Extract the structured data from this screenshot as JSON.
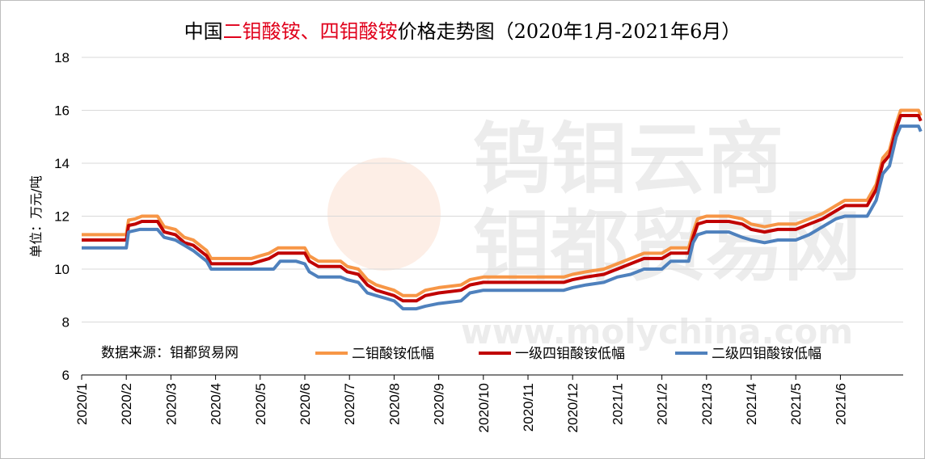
{
  "chart_data": {
    "type": "line",
    "title": {
      "prefix": "中国",
      "red1": "二钼酸铵",
      "sep": "、",
      "red2": "四钼酸铵",
      "suffix": "价格走势图（2020年1月-2021年6月）"
    },
    "ylabel": "单位：万元/吨",
    "source": "数据来源：钼都贸易网",
    "watermark": {
      "line1": "钨钼云商",
      "line2": "钼都贸易网",
      "url": "www.molychina.com"
    },
    "ylim": [
      6,
      18
    ],
    "yticks": [
      6,
      8,
      10,
      12,
      14,
      16,
      18
    ],
    "xlim": [
      0,
      18
    ],
    "xticks": [
      "2020/1",
      "2020/2",
      "2020/3",
      "2020/4",
      "2020/5",
      "2020/6",
      "2020/7",
      "2020/8",
      "2020/9",
      "2020/10",
      "2020/11",
      "2020/12",
      "2021/1",
      "2021/2",
      "2021/3",
      "2021/4",
      "2021/5",
      "2021/6"
    ],
    "grid": "horizontal",
    "legend_position": "bottom",
    "series": [
      {
        "name": "二钼酸铵低幅",
        "color": "#f79646",
        "points": [
          [
            0,
            11.3
          ],
          [
            0.5,
            11.3
          ],
          [
            1.0,
            11.3
          ],
          [
            1.05,
            11.85
          ],
          [
            1.2,
            11.9
          ],
          [
            1.35,
            12.0
          ],
          [
            1.7,
            12.0
          ],
          [
            1.85,
            11.6
          ],
          [
            2.1,
            11.5
          ],
          [
            2.3,
            11.2
          ],
          [
            2.5,
            11.1
          ],
          [
            2.8,
            10.7
          ],
          [
            2.9,
            10.4
          ],
          [
            3.2,
            10.4
          ],
          [
            3.8,
            10.4
          ],
          [
            4.0,
            10.5
          ],
          [
            4.2,
            10.6
          ],
          [
            4.4,
            10.8
          ],
          [
            5.0,
            10.8
          ],
          [
            5.1,
            10.5
          ],
          [
            5.3,
            10.3
          ],
          [
            5.8,
            10.3
          ],
          [
            5.95,
            10.1
          ],
          [
            6.2,
            10.0
          ],
          [
            6.4,
            9.6
          ],
          [
            6.6,
            9.4
          ],
          [
            6.8,
            9.3
          ],
          [
            7.0,
            9.2
          ],
          [
            7.2,
            9.0
          ],
          [
            7.5,
            9.0
          ],
          [
            7.7,
            9.2
          ],
          [
            8.0,
            9.3
          ],
          [
            8.5,
            9.4
          ],
          [
            8.7,
            9.6
          ],
          [
            9.0,
            9.7
          ],
          [
            10.0,
            9.7
          ],
          [
            10.8,
            9.7
          ],
          [
            11.0,
            9.8
          ],
          [
            11.3,
            9.9
          ],
          [
            11.7,
            10.0
          ],
          [
            12.0,
            10.2
          ],
          [
            12.3,
            10.4
          ],
          [
            12.6,
            10.6
          ],
          [
            13.0,
            10.6
          ],
          [
            13.2,
            10.8
          ],
          [
            13.6,
            10.8
          ],
          [
            13.7,
            11.4
          ],
          [
            13.8,
            11.9
          ],
          [
            14.0,
            12.0
          ],
          [
            14.5,
            12.0
          ],
          [
            14.8,
            11.9
          ],
          [
            15.0,
            11.7
          ],
          [
            15.3,
            11.6
          ],
          [
            15.6,
            11.7
          ],
          [
            16.0,
            11.7
          ],
          [
            16.3,
            11.9
          ],
          [
            16.6,
            12.1
          ],
          [
            16.9,
            12.4
          ],
          [
            17.1,
            12.6
          ],
          [
            17.6,
            12.6
          ],
          [
            17.8,
            13.2
          ],
          [
            17.95,
            14.2
          ],
          [
            18.1,
            14.5
          ],
          [
            18.25,
            15.5
          ],
          [
            18.35,
            16.0
          ],
          [
            18.75,
            16.0
          ],
          [
            18.8,
            15.8
          ]
        ],
        "offset": 0.0
      },
      {
        "name": "一级四钼酸铵低幅",
        "color": "#c00000",
        "points": [
          [
            0,
            11.3
          ],
          [
            0.5,
            11.3
          ],
          [
            1.0,
            11.3
          ],
          [
            1.05,
            11.85
          ],
          [
            1.2,
            11.9
          ],
          [
            1.35,
            12.0
          ],
          [
            1.7,
            12.0
          ],
          [
            1.85,
            11.6
          ],
          [
            2.1,
            11.5
          ],
          [
            2.3,
            11.2
          ],
          [
            2.5,
            11.1
          ],
          [
            2.8,
            10.7
          ],
          [
            2.9,
            10.4
          ],
          [
            3.2,
            10.4
          ],
          [
            3.8,
            10.4
          ],
          [
            4.0,
            10.5
          ],
          [
            4.2,
            10.6
          ],
          [
            4.4,
            10.8
          ],
          [
            5.0,
            10.8
          ],
          [
            5.1,
            10.5
          ],
          [
            5.3,
            10.3
          ],
          [
            5.8,
            10.3
          ],
          [
            5.95,
            10.1
          ],
          [
            6.2,
            10.0
          ],
          [
            6.4,
            9.6
          ],
          [
            6.6,
            9.4
          ],
          [
            6.8,
            9.3
          ],
          [
            7.0,
            9.2
          ],
          [
            7.2,
            9.0
          ],
          [
            7.5,
            9.0
          ],
          [
            7.7,
            9.2
          ],
          [
            8.0,
            9.3
          ],
          [
            8.5,
            9.4
          ],
          [
            8.7,
            9.6
          ],
          [
            9.0,
            9.7
          ],
          [
            10.0,
            9.7
          ],
          [
            10.8,
            9.7
          ],
          [
            11.0,
            9.8
          ],
          [
            11.3,
            9.9
          ],
          [
            11.7,
            10.0
          ],
          [
            12.0,
            10.2
          ],
          [
            12.3,
            10.4
          ],
          [
            12.6,
            10.6
          ],
          [
            13.0,
            10.6
          ],
          [
            13.2,
            10.8
          ],
          [
            13.6,
            10.8
          ],
          [
            13.7,
            11.4
          ],
          [
            13.8,
            11.9
          ],
          [
            14.0,
            12.0
          ],
          [
            14.5,
            12.0
          ],
          [
            14.8,
            11.9
          ],
          [
            15.0,
            11.7
          ],
          [
            15.3,
            11.6
          ],
          [
            15.6,
            11.7
          ],
          [
            16.0,
            11.7
          ],
          [
            16.3,
            11.9
          ],
          [
            16.6,
            12.1
          ],
          [
            16.9,
            12.4
          ],
          [
            17.1,
            12.6
          ],
          [
            17.6,
            12.6
          ],
          [
            17.8,
            13.2
          ],
          [
            17.95,
            14.2
          ],
          [
            18.1,
            14.5
          ],
          [
            18.25,
            15.5
          ],
          [
            18.35,
            16.0
          ],
          [
            18.75,
            16.0
          ],
          [
            18.8,
            15.8
          ]
        ],
        "offset": -0.2
      },
      {
        "name": "二级四钼酸铵低幅",
        "color": "#4f81bd",
        "points": [
          [
            0,
            10.8
          ],
          [
            1.0,
            10.8
          ],
          [
            1.05,
            11.4
          ],
          [
            1.3,
            11.5
          ],
          [
            1.7,
            11.5
          ],
          [
            1.85,
            11.2
          ],
          [
            2.1,
            11.1
          ],
          [
            2.3,
            10.9
          ],
          [
            2.5,
            10.7
          ],
          [
            2.8,
            10.3
          ],
          [
            2.9,
            10.0
          ],
          [
            3.8,
            10.0
          ],
          [
            4.3,
            10.0
          ],
          [
            4.45,
            10.3
          ],
          [
            4.8,
            10.3
          ],
          [
            5.0,
            10.2
          ],
          [
            5.1,
            9.9
          ],
          [
            5.3,
            9.7
          ],
          [
            5.8,
            9.7
          ],
          [
            5.95,
            9.6
          ],
          [
            6.2,
            9.5
          ],
          [
            6.4,
            9.1
          ],
          [
            6.6,
            9.0
          ],
          [
            6.8,
            8.9
          ],
          [
            7.0,
            8.8
          ],
          [
            7.2,
            8.5
          ],
          [
            7.5,
            8.5
          ],
          [
            7.7,
            8.6
          ],
          [
            8.0,
            8.7
          ],
          [
            8.5,
            8.8
          ],
          [
            8.7,
            9.1
          ],
          [
            9.0,
            9.2
          ],
          [
            10.0,
            9.2
          ],
          [
            10.8,
            9.2
          ],
          [
            11.0,
            9.3
          ],
          [
            11.3,
            9.4
          ],
          [
            11.7,
            9.5
          ],
          [
            12.0,
            9.7
          ],
          [
            12.3,
            9.8
          ],
          [
            12.6,
            10.0
          ],
          [
            13.0,
            10.0
          ],
          [
            13.2,
            10.3
          ],
          [
            13.6,
            10.3
          ],
          [
            13.7,
            11.0
          ],
          [
            13.8,
            11.3
          ],
          [
            14.0,
            11.4
          ],
          [
            14.5,
            11.4
          ],
          [
            14.8,
            11.2
          ],
          [
            15.0,
            11.1
          ],
          [
            15.3,
            11.0
          ],
          [
            15.6,
            11.1
          ],
          [
            16.0,
            11.1
          ],
          [
            16.3,
            11.3
          ],
          [
            16.6,
            11.6
          ],
          [
            16.9,
            11.9
          ],
          [
            17.1,
            12.0
          ],
          [
            17.6,
            12.0
          ],
          [
            17.8,
            12.6
          ],
          [
            17.95,
            13.6
          ],
          [
            18.1,
            13.9
          ],
          [
            18.25,
            15.0
          ],
          [
            18.35,
            15.4
          ],
          [
            18.75,
            15.4
          ],
          [
            18.8,
            15.2
          ]
        ],
        "offset": 0.0
      }
    ]
  }
}
